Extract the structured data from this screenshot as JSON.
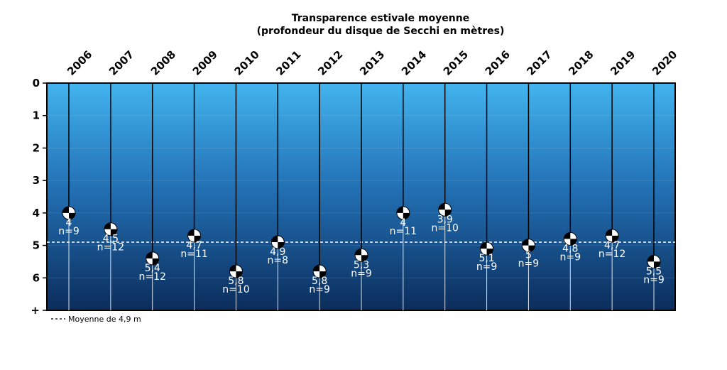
{
  "chart_data": {
    "type": "scatter",
    "title": "Transparence estivale moyenne",
    "subtitle": "(profondeur du disque de Secchi en mètres)",
    "x_position": "top",
    "y_inverted": true,
    "ylim": [
      0,
      7
    ],
    "y_ticks": [
      "0",
      "1",
      "2",
      "3",
      "4",
      "5",
      "6",
      "+"
    ],
    "categories": [
      "2006",
      "2007",
      "2008",
      "2009",
      "2010",
      "2011",
      "2012",
      "2013",
      "2014",
      "2015",
      "2016",
      "2017",
      "2018",
      "2019",
      "2020"
    ],
    "values": [
      4,
      4.5,
      5.4,
      4.7,
      5.8,
      4.9,
      5.8,
      5.3,
      4,
      3.9,
      5.1,
      5,
      4.8,
      4.7,
      5.5
    ],
    "value_labels": [
      "4",
      "4,5",
      "5,4",
      "4,7",
      "5,8",
      "4,9",
      "5,8",
      "5,3",
      "4",
      "3,9",
      "5,1",
      "5",
      "4,8",
      "4,7",
      "5,5"
    ],
    "n_labels": [
      "n=9",
      "n=12",
      "n=12",
      "n=11",
      "n=10",
      "n=8",
      "n=9",
      "n=9",
      "n=11",
      "n=10",
      "n=9",
      "n=9",
      "n=9",
      "n=12",
      "n=9"
    ],
    "mean_line": {
      "value": 4.9,
      "style": "dashed",
      "legend": "Moyenne de 4,9 m"
    },
    "colors": {
      "water_top": "#42b4ee",
      "water_mid": "#2372b6",
      "water_bottom": "#0b2d5c",
      "mean_line": "#ffffff"
    },
    "grid": true,
    "legend_placement": "bottom-left"
  }
}
